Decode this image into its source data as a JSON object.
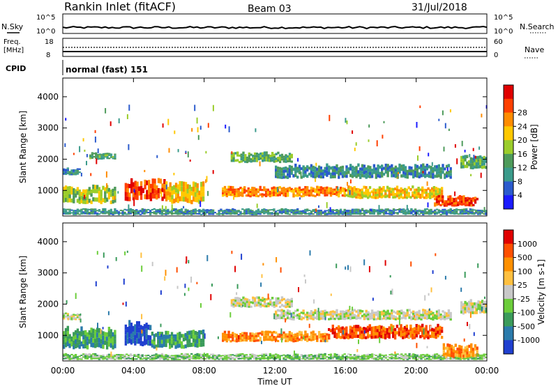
{
  "header": {
    "station": "Rankin Inlet (fitACF)",
    "beam": "Beam 03",
    "date": "31/Jul/2018"
  },
  "top_panels": {
    "nsky_label": "N.Sky",
    "nsearch_label": "N.Search",
    "noise_ticks_left": [
      "10^5",
      "10^0"
    ],
    "noise_ticks_right": [
      "10^5",
      "10^0"
    ],
    "freq_label_1": "Freq.",
    "freq_label_2": "[MHz]",
    "freq_ticks": [
      "18",
      "8"
    ],
    "nave_label": "Nave",
    "nave_ticks": [
      "60",
      "0"
    ],
    "cpid_label": "CPID",
    "cpid_value": "normal (fast) 151"
  },
  "chart_data": [
    {
      "type": "heatmap",
      "name": "power",
      "ylabel": "Slant Range [km]",
      "xlabel": "Time UT",
      "ylim": [
        180,
        4600
      ],
      "yticks": [
        "1000",
        "2000",
        "3000",
        "4000"
      ],
      "xticks": [
        "00:00",
        "04:00",
        "08:00",
        "12:00",
        "16:00",
        "20:00",
        "00:00"
      ],
      "colorbar_label": "Power [dB]",
      "colorbar_ticks": [
        "4",
        "8",
        "12",
        "16",
        "20",
        "24",
        "28"
      ],
      "colors": [
        "#1b1bff",
        "#2b5bcd",
        "#3b9b8b",
        "#4e9b5b",
        "#9bcd2b",
        "#ffc800",
        "#ff8c00",
        "#ff4000",
        "#e00000"
      ],
      "bands": [
        {
          "t0": 0.0,
          "t1": 24.0,
          "r0": 220,
          "r1": 400,
          "level": 2
        },
        {
          "t0": 0.0,
          "t1": 3.0,
          "r0": 600,
          "r1": 1100,
          "level": 4
        },
        {
          "t0": 3.5,
          "t1": 5.8,
          "r0": 700,
          "r1": 1300,
          "level": 7
        },
        {
          "t0": 5.8,
          "t1": 8.0,
          "r0": 600,
          "r1": 1200,
          "level": 5
        },
        {
          "t0": 9.0,
          "t1": 16.0,
          "r0": 800,
          "r1": 1100,
          "level": 6
        },
        {
          "t0": 16.0,
          "t1": 21.5,
          "r0": 750,
          "r1": 1100,
          "level": 5
        },
        {
          "t0": 21.0,
          "t1": 23.5,
          "r0": 500,
          "r1": 800,
          "level": 7
        },
        {
          "t0": 0.0,
          "t1": 1.0,
          "r0": 1500,
          "r1": 1700,
          "level": 2
        },
        {
          "t0": 1.5,
          "t1": 3.0,
          "r0": 2000,
          "r1": 2200,
          "level": 3
        },
        {
          "t0": 9.5,
          "t1": 13.0,
          "r0": 1900,
          "r1": 2200,
          "level": 3
        },
        {
          "t0": 12.0,
          "t1": 22.0,
          "r0": 1400,
          "r1": 1800,
          "level": 2
        },
        {
          "t0": 22.5,
          "t1": 24.0,
          "r0": 1700,
          "r1": 2100,
          "level": 3
        }
      ]
    },
    {
      "type": "heatmap",
      "name": "velocity",
      "ylabel": "Slant Range [km]",
      "xlabel": "Time UT",
      "ylim": [
        180,
        4600
      ],
      "yticks": [
        "1000",
        "2000",
        "3000",
        "4000"
      ],
      "xticks": [
        "00:00",
        "04:00",
        "08:00",
        "12:00",
        "16:00",
        "20:00",
        "00:00"
      ],
      "colorbar_label": "Velocity [m s-1]",
      "colorbar_ticks": [
        "1000",
        "500",
        "100",
        "25",
        "-25",
        "-100",
        "-500",
        "-1000"
      ],
      "colors": [
        "#2040d0",
        "#2b7bab",
        "#3b9b5b",
        "#6ccd3b",
        "#c8c8c8",
        "#ffc040",
        "#ff9000",
        "#ff5000",
        "#e00000"
      ],
      "bands": [
        {
          "t0": 0.0,
          "t1": 24.0,
          "r0": 220,
          "r1": 400,
          "level": 3
        },
        {
          "t0": 0.0,
          "t1": 3.0,
          "r0": 600,
          "r1": 1200,
          "level": 2
        },
        {
          "t0": 3.5,
          "t1": 5.0,
          "r0": 700,
          "r1": 1400,
          "level": 0
        },
        {
          "t0": 5.0,
          "t1": 8.0,
          "r0": 600,
          "r1": 1100,
          "level": 2
        },
        {
          "t0": 9.0,
          "t1": 15.0,
          "r0": 800,
          "r1": 1100,
          "level": 6
        },
        {
          "t0": 15.0,
          "t1": 21.5,
          "r0": 900,
          "r1": 1300,
          "level": 7
        },
        {
          "t0": 21.5,
          "t1": 23.5,
          "r0": 300,
          "r1": 700,
          "level": 6
        },
        {
          "t0": 0.0,
          "t1": 1.0,
          "r0": 1500,
          "r1": 1700,
          "level": 4
        },
        {
          "t0": 9.5,
          "t1": 13.0,
          "r0": 1900,
          "r1": 2200,
          "level": 4
        },
        {
          "t0": 12.0,
          "t1": 22.0,
          "r0": 1500,
          "r1": 1800,
          "level": 4
        },
        {
          "t0": 22.5,
          "t1": 24.0,
          "r0": 1700,
          "r1": 2100,
          "level": 4
        }
      ]
    }
  ]
}
